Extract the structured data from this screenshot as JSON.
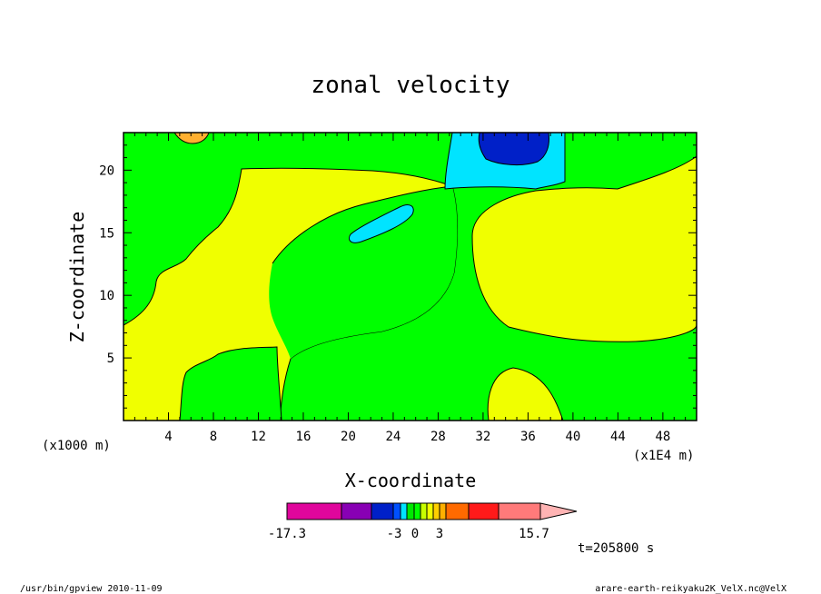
{
  "chart_data": {
    "type": "heatmap",
    "title": "zonal velocity",
    "xlabel": "X-coordinate",
    "ylabel": "Z-coordinate",
    "x_scale_label": "(x1E4 m)",
    "y_scale_label": "(x1000 m)",
    "xlim": [
      0,
      51
    ],
    "ylim": [
      0,
      23
    ],
    "x_ticks": [
      4,
      8,
      12,
      16,
      20,
      24,
      28,
      32,
      36,
      40,
      44,
      48
    ],
    "y_ticks": [
      5,
      10,
      15,
      20
    ],
    "grid": false,
    "colorbar": {
      "labels": [
        {
          "text": "-17.3",
          "value": -17.3
        },
        {
          "text": "-3",
          "value": -3
        },
        {
          "text": "0",
          "value": 0
        },
        {
          "text": "3",
          "value": 3
        },
        {
          "text": "15.7",
          "value": 15.7
        }
      ],
      "colors": [
        "#e0069c",
        "#8800b4",
        "#0020c8",
        "#0050ff",
        "#00e4ff",
        "#00e800",
        "#00ff00",
        "#c8ff00",
        "#f0ff00",
        "#ffd000",
        "#ffb000",
        "#ff6a00",
        "#ff1a1a",
        "#ff7a7a",
        "#ffb4b4"
      ]
    },
    "levels": {
      "strong_neg": "#0020c8",
      "neg": "#00e4ff",
      "near_zero_neg": "#00ff00",
      "near_zero_pos": "#f0ff00",
      "pos": "#ffb030"
    },
    "annotation_time": "t=205800 s"
  },
  "footer": {
    "left": "/usr/bin/gpview  2010-11-09",
    "right": "arare-earth-reikyaku2K_VelX.nc@VelX"
  }
}
